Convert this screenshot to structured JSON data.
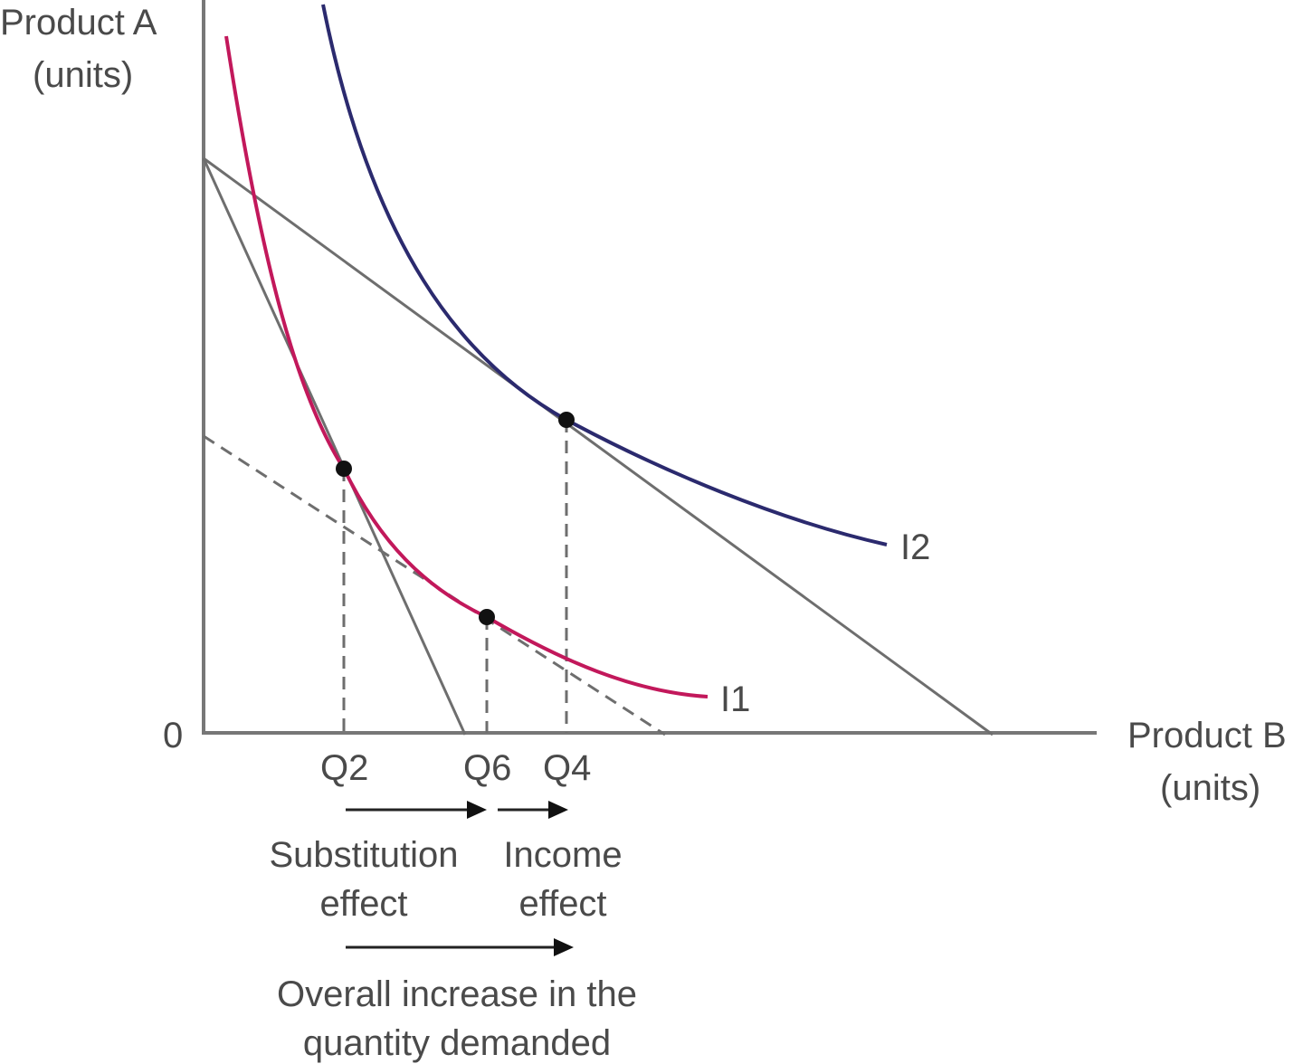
{
  "axes": {
    "y_label_line1": "Product A",
    "y_label_line2": "(units)",
    "x_label_line1": "Product B",
    "x_label_line2": "(units)",
    "origin": "0"
  },
  "curves": {
    "i1_label": "I1",
    "i2_label": "I2",
    "i1_color": "#c2185b",
    "i2_color": "#2b2a6e"
  },
  "ticks": {
    "q2": "Q2",
    "q6": "Q6",
    "q4": "Q4"
  },
  "effects": {
    "substitution_line1": "Substitution",
    "substitution_line2": "effect",
    "income_line1": "Income",
    "income_line2": "effect",
    "overall_line1": "Overall increase in the",
    "overall_line2": "quantity demanded"
  }
}
